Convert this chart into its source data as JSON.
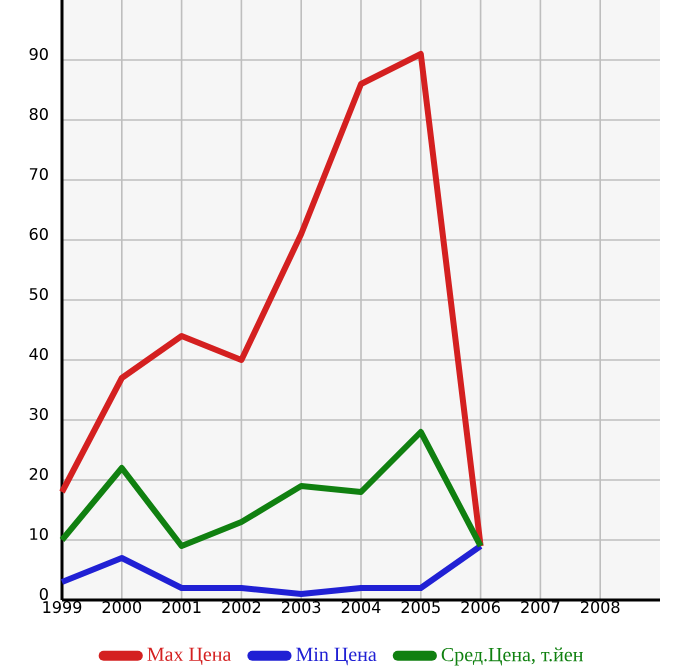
{
  "chart_data": {
    "type": "line",
    "x": [
      1999,
      2000,
      2001,
      2002,
      2003,
      2004,
      2005,
      2006
    ],
    "series": [
      {
        "name": "Max Цена",
        "color": "#d42020",
        "values": [
          18,
          37,
          44,
          40,
          61,
          86,
          91,
          9
        ]
      },
      {
        "name": "Min Цена",
        "color": "#2020d4",
        "values": [
          3,
          7,
          2,
          2,
          1,
          2,
          2,
          9
        ]
      },
      {
        "name": "Сред.Цена, т.йен",
        "color": "#108010",
        "values": [
          10,
          22,
          9,
          13,
          19,
          18,
          28,
          9
        ]
      }
    ],
    "xlim": [
      1999,
      2009
    ],
    "xticks": [
      1999,
      2000,
      2001,
      2002,
      2003,
      2004,
      2005,
      2006,
      2007,
      2008
    ],
    "ylim": [
      0,
      100
    ],
    "yticks": [
      0,
      10,
      20,
      30,
      40,
      50,
      60,
      70,
      80,
      90
    ],
    "grid": true,
    "legend": "bottom",
    "marker": "none",
    "line_style": "solid"
  }
}
